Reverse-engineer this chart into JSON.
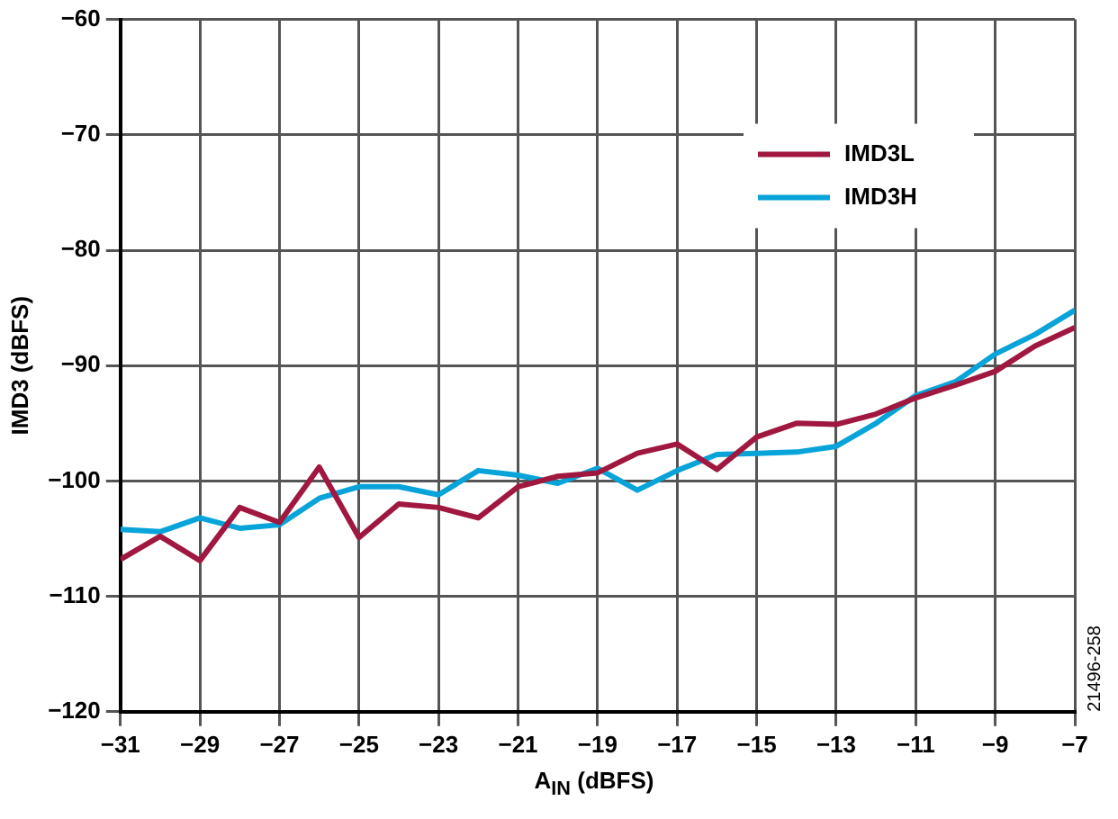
{
  "chart_data": {
    "type": "line",
    "xlabel": "A$_{IN}$ (dBFS)",
    "ylabel": "IMD3 (dBFS)",
    "x": [
      -31,
      -30,
      -29,
      -28,
      -27,
      -26,
      -25,
      -24,
      -23,
      -22,
      -21,
      -20,
      -19,
      -18,
      -17,
      -16,
      -15,
      -14,
      -13,
      -12,
      -11,
      -10,
      -9,
      -8,
      -7
    ],
    "series": [
      {
        "name": "IMD3L",
        "color": "#a0183f",
        "values": [
          -106.8,
          -104.8,
          -106.9,
          -102.3,
          -103.6,
          -98.8,
          -104.9,
          -102.0,
          -102.3,
          -103.2,
          -100.5,
          -99.6,
          -99.3,
          -97.6,
          -96.8,
          -99.0,
          -96.2,
          -95.0,
          -95.1,
          -94.2,
          -92.8,
          -91.7,
          -90.5,
          -88.3,
          -86.7
        ]
      },
      {
        "name": "IMD3H",
        "color": "#08a4d9",
        "values": [
          -104.2,
          -104.4,
          -103.2,
          -104.1,
          -103.8,
          -101.5,
          -100.5,
          -100.5,
          -101.2,
          -99.1,
          -99.5,
          -100.2,
          -98.9,
          -100.8,
          -99.1,
          -97.7,
          -97.6,
          -97.5,
          -97.0,
          -95.0,
          -92.6,
          -91.4,
          -89.0,
          -87.3,
          -85.2
        ]
      }
    ],
    "xlim": [
      -31,
      -7
    ],
    "xticks": [
      -31,
      -29,
      -27,
      -25,
      -23,
      -21,
      -19,
      -17,
      -15,
      -13,
      -11,
      -9,
      -7
    ],
    "ylim": [
      -120,
      -60
    ],
    "yticks": [
      -120,
      -110,
      -100,
      -90,
      -80,
      -70,
      -60
    ],
    "grid": true,
    "legend": "top right",
    "marker": "none",
    "line_style": "solid",
    "annotations": [
      "21496-258"
    ]
  }
}
